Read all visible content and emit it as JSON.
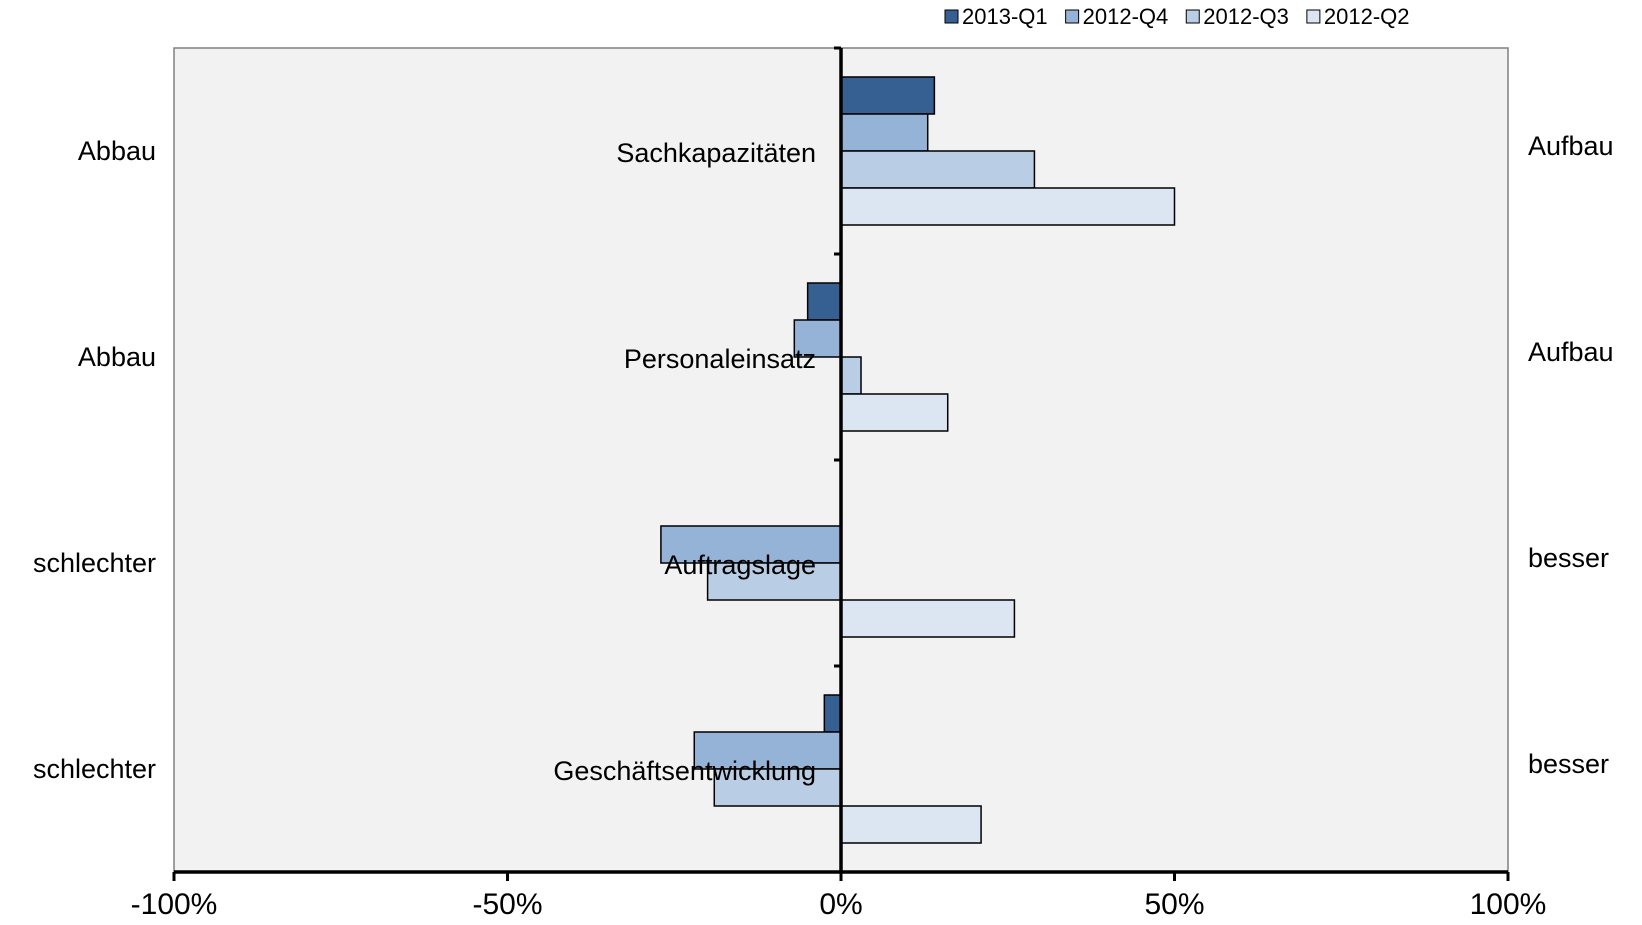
{
  "chart_data": {
    "type": "hbar",
    "categories": [
      "Sachkapazitäten",
      "Personaleinsatz",
      "Auftragslage",
      "Geschäftsentwicklung"
    ],
    "left_labels": [
      "Abbau",
      "Abbau",
      "schlechter",
      "schlechter"
    ],
    "right_labels": [
      "Aufbau",
      "Aufbau",
      "besser",
      "besser"
    ],
    "series": [
      {
        "name": "2013-Q1",
        "color": "#376092",
        "values": [
          14,
          -5,
          null,
          -2.5
        ]
      },
      {
        "name": "2012-Q4",
        "color": "#95b3d7",
        "values": [
          13,
          -7,
          -27,
          -22
        ]
      },
      {
        "name": "2012-Q3",
        "color": "#b9cde5",
        "values": [
          29,
          3,
          -20,
          -19
        ]
      },
      {
        "name": "2012-Q2",
        "color": "#dce6f2",
        "values": [
          50,
          16,
          26,
          21
        ]
      }
    ],
    "xlim": [
      -100,
      100
    ],
    "xticks": [
      {
        "value": -100,
        "label": "-100%"
      },
      {
        "value": -50,
        "label": "-50%"
      },
      {
        "value": 0,
        "label": "0%"
      },
      {
        "value": 50,
        "label": "50%"
      },
      {
        "value": 100,
        "label": "100%"
      }
    ],
    "legend": "top-right"
  }
}
